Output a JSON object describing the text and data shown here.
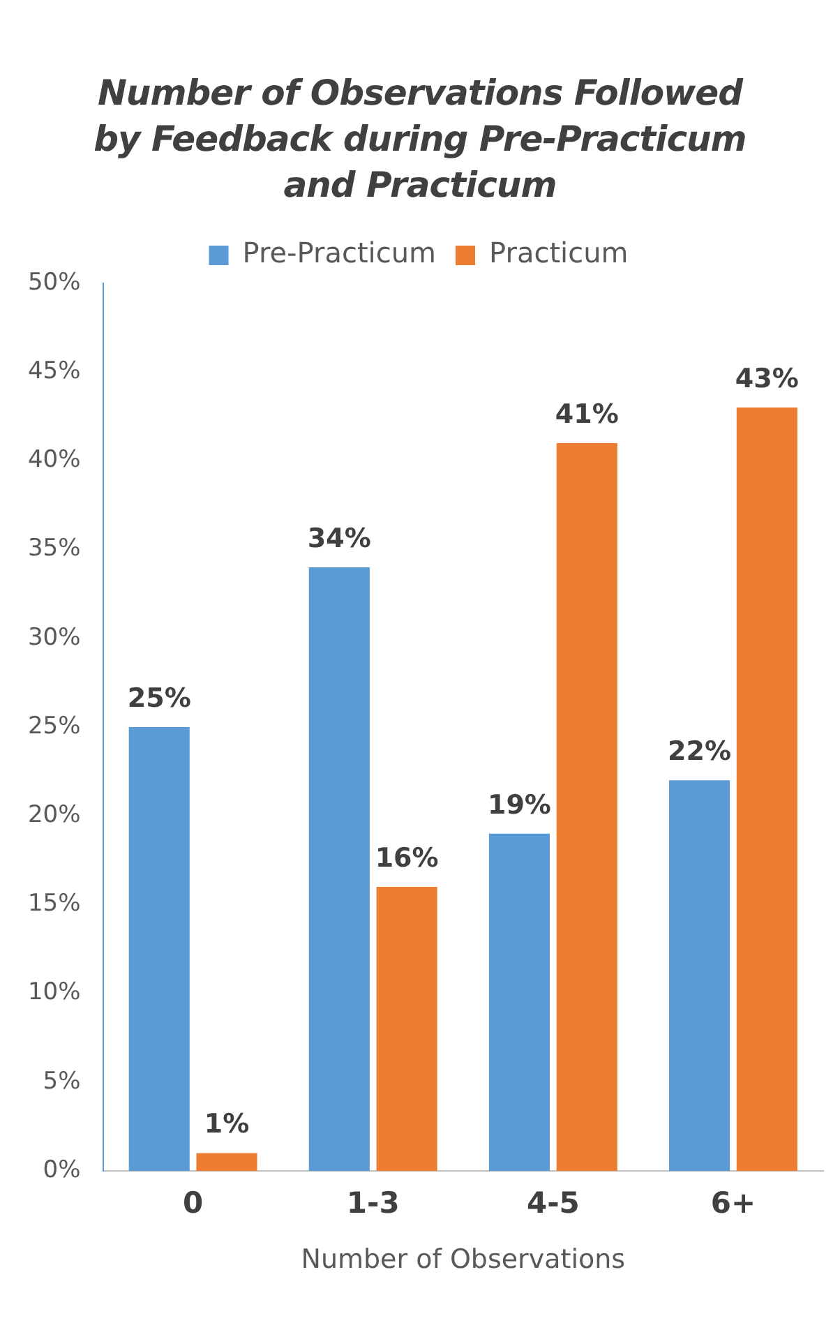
{
  "chart_data": {
    "type": "bar",
    "title": "Number of Observations Followed by Feedback during Pre-Practicum and Practicum",
    "xlabel": "Number of Observations",
    "categories": [
      "0",
      "1-3",
      "4-5",
      "6+"
    ],
    "series": [
      {
        "name": "Pre-Practicum",
        "color": "#5b9bd5",
        "values": [
          25,
          34,
          19,
          22
        ],
        "value_labels": [
          "25%",
          "34%",
          "19%",
          "22%"
        ]
      },
      {
        "name": "Practicum",
        "color": "#ed7d31",
        "values": [
          1,
          16,
          41,
          43
        ],
        "value_labels": [
          "1%",
          "16%",
          "41%",
          "43%"
        ]
      }
    ],
    "ylim": [
      0,
      50
    ],
    "yticks": [
      {
        "value": 0,
        "label": "0%"
      },
      {
        "value": 5,
        "label": "5%"
      },
      {
        "value": 10,
        "label": "10%"
      },
      {
        "value": 15,
        "label": "15%"
      },
      {
        "value": 20,
        "label": "20%"
      },
      {
        "value": 25,
        "label": "25%"
      },
      {
        "value": 30,
        "label": "30%"
      },
      {
        "value": 35,
        "label": "35%"
      },
      {
        "value": 40,
        "label": "40%"
      },
      {
        "value": 45,
        "label": "45%"
      },
      {
        "value": 50,
        "label": "50%"
      }
    ],
    "grid": false,
    "legend": "top"
  }
}
